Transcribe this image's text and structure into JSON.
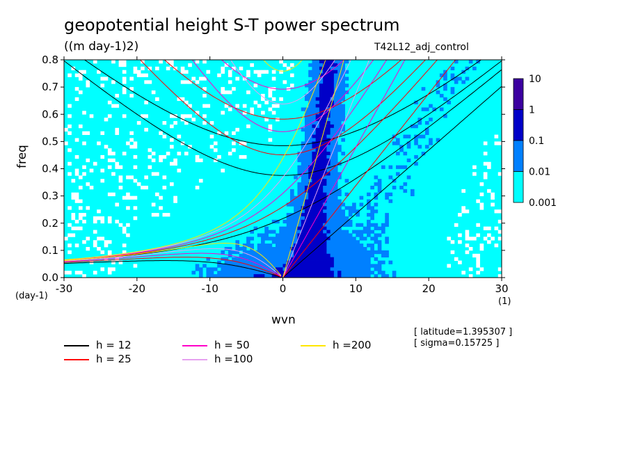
{
  "header": {
    "title": "geopotential height S-T power spectrum",
    "subtitle": "((m day-1)2)",
    "run_label": "T42L12_adj_control"
  },
  "info": {
    "latitude": "[ latitude=1.395307 ]",
    "sigma": "[ sigma=0.15725 ]"
  },
  "chart_data": {
    "type": "heatmap",
    "xlabel": "wvn",
    "ylabel": "freq",
    "x_unit": "(1)",
    "y_unit": "(day-1)",
    "xlim": [
      -30,
      30
    ],
    "ylim": [
      0,
      0.8
    ],
    "x_ticks": [
      "-30",
      "-20",
      "-10",
      "0",
      "10",
      "20",
      "30"
    ],
    "y_ticks": [
      "0.0",
      "0.1",
      "0.2",
      "0.3",
      "0.4",
      "0.5",
      "0.6",
      "0.7",
      "0.8"
    ],
    "colorbar": {
      "levels": [
        "0.001",
        "0.01",
        "0.1",
        "1",
        "10"
      ],
      "colors": [
        "#00ffff",
        "#0080ff",
        "#0000c8",
        "#3c00a0"
      ]
    },
    "background_level_color": "#00ffff",
    "below_min_color": "#ffffff",
    "dispersion_curves": [
      {
        "label": "h = 12",
        "h": 12,
        "color": "#000000"
      },
      {
        "label": "h = 25",
        "h": 25,
        "color": "#ff0000"
      },
      {
        "label": "h = 50",
        "h": 50,
        "color": "#ff00c8"
      },
      {
        "label": "h =100",
        "h": 100,
        "color": "#e6a0f0"
      },
      {
        "label": "h =200",
        "h": 200,
        "color": "#ffe600"
      }
    ]
  }
}
